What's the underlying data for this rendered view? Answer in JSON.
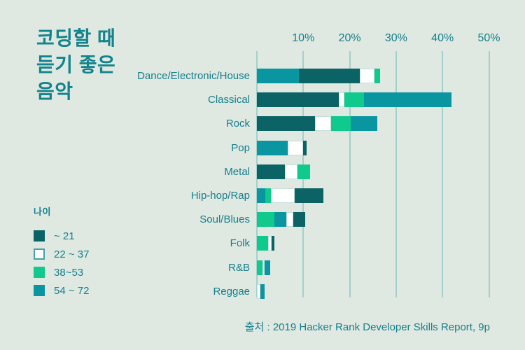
{
  "title": "코딩할 때\n듣기 좋은\n음악",
  "legend": {
    "title": "나이"
  },
  "source": "출처 : 2019 Hacker Rank Developer Skills Report, 9p",
  "colors": {
    "background": "#dfe8e1",
    "title_text": "#13848c",
    "accent_text": "#15808c",
    "gridline": "#a3d0cd",
    "white_swatch_border": "#47a0a8"
  },
  "chart_data": {
    "type": "bar",
    "orientation": "horizontal-stacked",
    "unit": "%",
    "xlim": [
      0,
      50
    ],
    "grid": true,
    "ticks": [
      10,
      20,
      30,
      40,
      50
    ],
    "tick_labels": [
      "10%",
      "20%",
      "30%",
      "40%",
      "50%"
    ],
    "legend_position": "left",
    "groups": [
      {
        "name": "~ 21",
        "color": "#0b6366"
      },
      {
        "name": "22 ~ 37",
        "color": "#ffffff"
      },
      {
        "name": "38~53",
        "color": "#10c98c"
      },
      {
        "name": "54 ~ 72",
        "color": "#0a96a0"
      }
    ],
    "categories": [
      "Dance/Electronic/House",
      "Classical",
      "Rock",
      "Pop",
      "Metal",
      "Hip-hop/Rap",
      "Soul/Blues",
      "Folk",
      "R&B",
      "Reggae"
    ],
    "bars": [
      {
        "category": "Dance/Electronic/House",
        "total": 26.6,
        "segments": [
          {
            "group": "54 ~ 72",
            "value": 9.1
          },
          {
            "group": "~ 21",
            "value": 13.0
          },
          {
            "group": "22 ~ 37",
            "value": 3.2
          },
          {
            "group": "38~53",
            "value": 1.3
          }
        ]
      },
      {
        "category": "Classical",
        "total": 42.0,
        "segments": [
          {
            "group": "~ 21",
            "value": 17.6
          },
          {
            "group": "22 ~ 37",
            "value": 1.2
          },
          {
            "group": "38~53",
            "value": 4.3
          },
          {
            "group": "54 ~ 72",
            "value": 18.9
          }
        ]
      },
      {
        "category": "Rock",
        "total": 25.9,
        "segments": [
          {
            "group": "~ 21",
            "value": 12.5
          },
          {
            "group": "22 ~ 37",
            "value": 3.5
          },
          {
            "group": "38~53",
            "value": 4.2
          },
          {
            "group": "54 ~ 72",
            "value": 5.7
          }
        ]
      },
      {
        "category": "Pop",
        "total": 10.7,
        "segments": [
          {
            "group": "54 ~ 72",
            "value": 6.6
          },
          {
            "group": "22 ~ 37",
            "value": 3.3
          },
          {
            "group": "~ 21",
            "value": 0.8
          }
        ]
      },
      {
        "category": "Metal",
        "total": 11.5,
        "segments": [
          {
            "group": "~ 21",
            "value": 6.1
          },
          {
            "group": "22 ~ 37",
            "value": 2.6
          },
          {
            "group": "38~53",
            "value": 2.8
          }
        ]
      },
      {
        "category": "Hip-hop/Rap",
        "total": 14.4,
        "segments": [
          {
            "group": "54 ~ 72",
            "value": 1.8
          },
          {
            "group": "38~53",
            "value": 1.2
          },
          {
            "group": "22 ~ 37",
            "value": 5.1
          },
          {
            "group": "~ 21",
            "value": 6.3
          }
        ]
      },
      {
        "category": "Soul/Blues",
        "total": 10.4,
        "segments": [
          {
            "group": "38~53",
            "value": 3.8
          },
          {
            "group": "54 ~ 72",
            "value": 2.6
          },
          {
            "group": "22 ~ 37",
            "value": 1.4
          },
          {
            "group": "~ 21",
            "value": 2.6
          }
        ]
      },
      {
        "category": "Folk",
        "total": 3.7,
        "segments": [
          {
            "group": "38~53",
            "value": 2.4
          },
          {
            "group": "22 ~ 37",
            "value": 0.7
          },
          {
            "group": "~ 21",
            "value": 0.6
          }
        ]
      },
      {
        "category": "R&B",
        "total": 2.8,
        "segments": [
          {
            "group": "38~53",
            "value": 1.2
          },
          {
            "group": "22 ~ 37",
            "value": 0.5
          },
          {
            "group": "54 ~ 72",
            "value": 1.1
          }
        ]
      },
      {
        "category": "Reggae",
        "total": 1.6,
        "segments": [
          {
            "group": "22 ~ 37",
            "value": 0.8
          },
          {
            "group": "54 ~ 72",
            "value": 0.8
          }
        ]
      }
    ]
  }
}
